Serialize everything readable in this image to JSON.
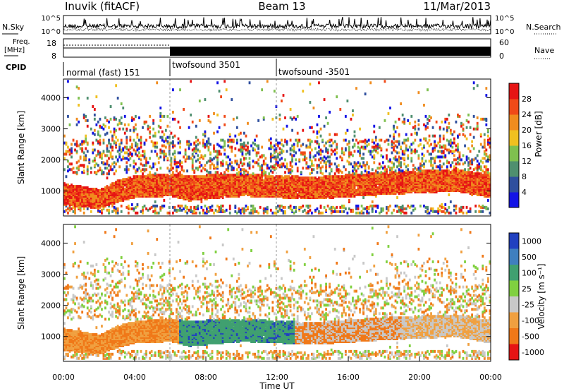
{
  "header": {
    "title": "Inuvik (fitACF)",
    "beam": "Beam 13",
    "date": "11/Mar/2013"
  },
  "sky_panel": {
    "left_label": "N.Sky",
    "right_label": "N.Search",
    "left_ticks": [
      "10^5",
      "10^0"
    ],
    "right_ticks": [
      "10^5",
      "10^0"
    ]
  },
  "freq_panel": {
    "left_label_1": "Freq.",
    "left_label_2": "[MHz]",
    "right_label": "Nave",
    "left_ticks": [
      "18",
      "8"
    ],
    "right_ticks": [
      "60",
      "0"
    ]
  },
  "cpid": {
    "label": "CPID",
    "segments": [
      {
        "name": "normal (fast) 151",
        "start": "00:00",
        "end": "06:00"
      },
      {
        "name": "twofsound 3501",
        "start": "06:00",
        "end": "12:00"
      },
      {
        "name": "twofsound -3501",
        "start": "12:00",
        "end": "24:00"
      }
    ]
  },
  "chart_data": [
    {
      "type": "heatmap",
      "name": "power",
      "xlabel": "",
      "ylabel": "Slant Range [km]",
      "yticks": [
        "1000",
        "2000",
        "3000",
        "4000"
      ],
      "ylim": [
        200,
        4600
      ],
      "colorbar_label": "Power [dB]",
      "colorbar_ticks": [
        "4",
        "8",
        "12",
        "16",
        "20",
        "24",
        "28"
      ],
      "colors": [
        "#1414e6",
        "#2f4f9e",
        "#4f8f6f",
        "#7fc04f",
        "#f0c020",
        "#f08c1e",
        "#f04a18",
        "#e61414"
      ],
      "main_echo_band": [
        {
          "x": 0,
          "y_center": 850,
          "width": 350
        },
        {
          "x": 2,
          "y_center": 700,
          "width": 300
        },
        {
          "x": 3,
          "y_center": 950,
          "width": 350
        },
        {
          "x": 4,
          "y_center": 1100,
          "width": 350
        },
        {
          "x": 6,
          "y_center": 1150,
          "width": 350
        },
        {
          "x": 7,
          "y_center": 1050,
          "width": 400
        },
        {
          "x": 10,
          "y_center": 1150,
          "width": 350
        },
        {
          "x": 14,
          "y_center": 1050,
          "width": 350
        },
        {
          "x": 18,
          "y_center": 1200,
          "width": 350
        },
        {
          "x": 22,
          "y_center": 1300,
          "width": 350
        },
        {
          "x": 24,
          "y_center": 1100,
          "width": 350
        }
      ]
    },
    {
      "type": "heatmap",
      "name": "velocity",
      "xlabel": "Time UT",
      "ylabel": "Slant Range [km]",
      "xticks": [
        "00:00",
        "04:00",
        "08:00",
        "12:00",
        "16:00",
        "20:00",
        "00:00"
      ],
      "xlim": [
        0,
        24
      ],
      "yticks": [
        "1000",
        "2000",
        "3000",
        "4000"
      ],
      "ylim": [
        200,
        4600
      ],
      "colorbar_label": "Velocity [m s⁻¹]",
      "colorbar_ticks": [
        "1000",
        "500",
        "100",
        "25",
        "-25",
        "-100",
        "-500",
        "-1000"
      ],
      "colors": [
        "#2040c0",
        "#3f7fbf",
        "#40a070",
        "#80d040",
        "#c8c8c8",
        "#f0a040",
        "#f07818",
        "#e61414"
      ]
    }
  ]
}
